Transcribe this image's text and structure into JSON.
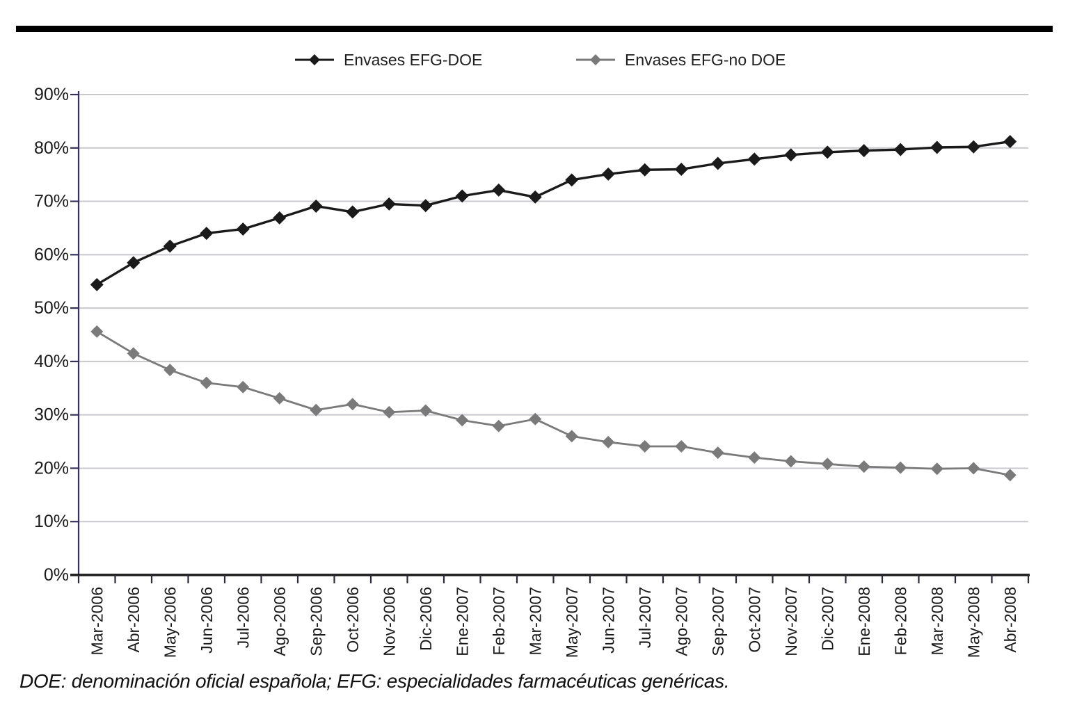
{
  "footnote": "DOE: denominación oficial española; EFG: especialidades farmacéuticas genéricas.",
  "chart_data": {
    "type": "line",
    "title": "",
    "xlabel": "",
    "ylabel": "",
    "categories": [
      "Mar-2006",
      "Abr-2006",
      "May-2006",
      "Jun-2006",
      "Jul-2006",
      "Ago-2006",
      "Sep-2006",
      "Oct-2006",
      "Nov-2006",
      "Dic-2006",
      "Ene-2007",
      "Feb-2007",
      "Mar-2007",
      "May-2007",
      "Jun-2007",
      "Jul-2007",
      "Ago-2007",
      "Sep-2007",
      "Oct-2007",
      "Nov-2007",
      "Dic-2007",
      "Ene-2008",
      "Feb-2008",
      "Mar-2008",
      "May-2008",
      "Abr-2008"
    ],
    "series": [
      {
        "name": "Envases EFG-DOE",
        "color": "#1a1a1a",
        "marker": "diamond",
        "values": [
          54.4,
          58.5,
          61.6,
          64.0,
          64.8,
          66.9,
          69.1,
          68.0,
          69.5,
          69.2,
          71.0,
          72.1,
          70.8,
          74.0,
          75.1,
          75.9,
          76.0,
          77.1,
          77.9,
          78.7,
          79.2,
          79.5,
          79.7,
          80.1,
          80.2,
          81.2
        ]
      },
      {
        "name": "Envases EFG-no DOE",
        "color": "#7a7a7a",
        "marker": "diamond",
        "values": [
          45.6,
          41.5,
          38.4,
          36.0,
          35.2,
          33.1,
          30.9,
          32.0,
          30.5,
          30.8,
          29.0,
          27.9,
          29.2,
          26.0,
          24.9,
          24.1,
          24.1,
          22.9,
          22.0,
          21.3,
          20.8,
          20.3,
          20.1,
          19.9,
          20.0,
          18.7
        ]
      }
    ],
    "ylim": [
      0,
      90
    ],
    "ytick_step": 10,
    "ytick_labels": [
      "0%",
      "10%",
      "20%",
      "30%",
      "40%",
      "50%",
      "60%",
      "70%",
      "80%",
      "90%"
    ],
    "grid": true,
    "legend_position": "top",
    "colors": {
      "grid": "#c8c8cd",
      "y_axis": "#35315f",
      "x_axis": "#1a1a1a",
      "tick": "#2b2b3a",
      "text": "#1a1a1a"
    }
  }
}
